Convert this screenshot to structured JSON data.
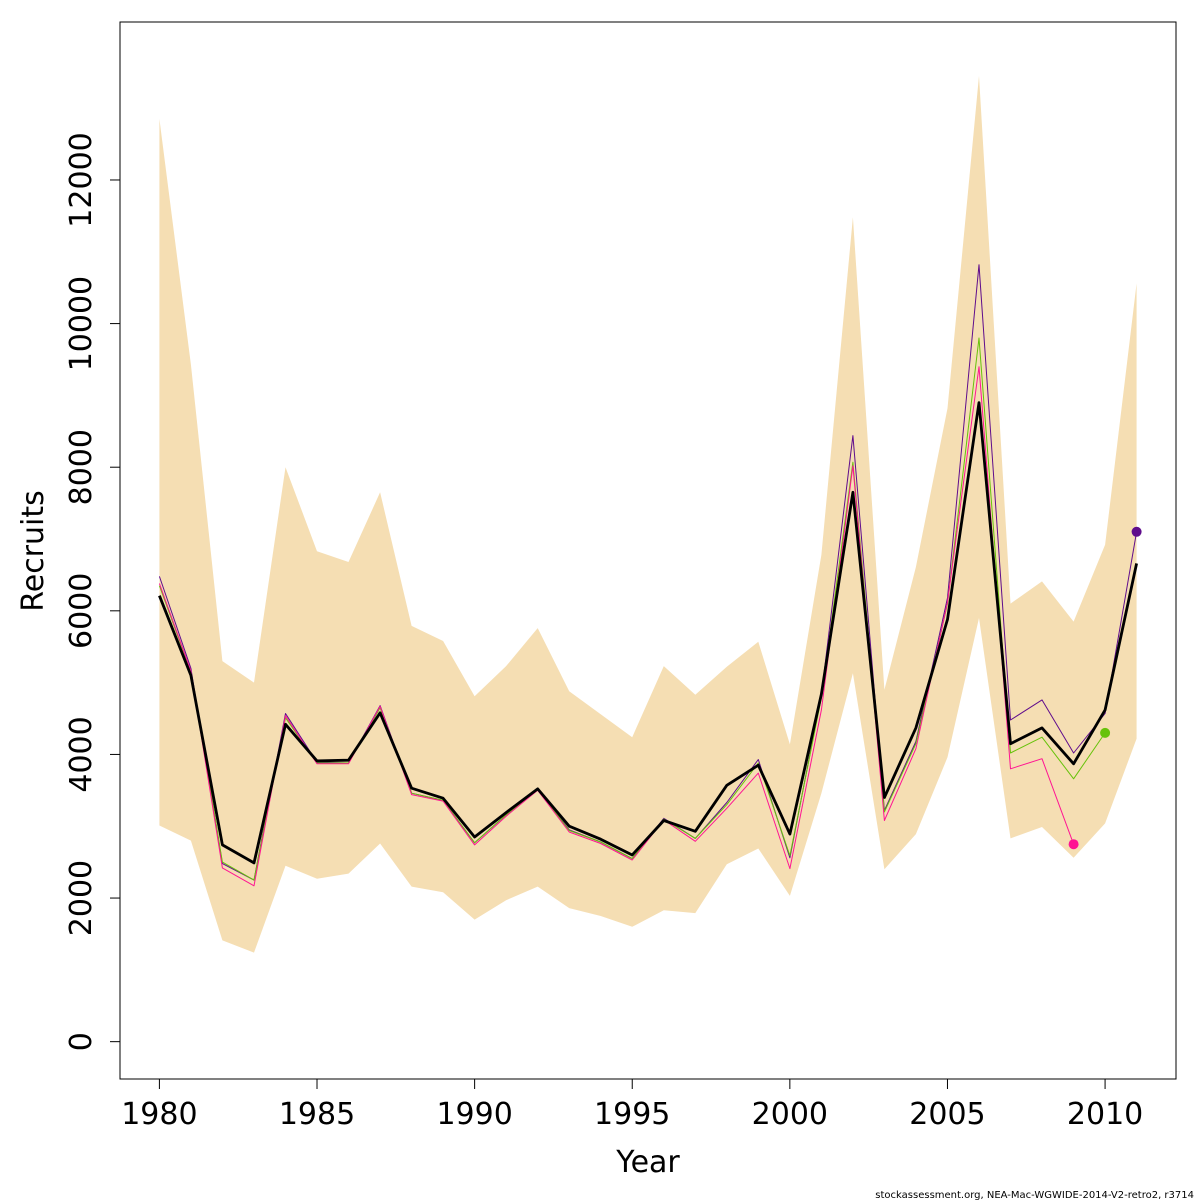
{
  "chart_data": {
    "type": "line",
    "xlabel": "Year",
    "ylabel": "Recruits",
    "xlim": [
      1978.75,
      2012.25
    ],
    "ylim": [
      -520,
      14200
    ],
    "x_ticks": [
      1980,
      1985,
      1990,
      1995,
      2000,
      2005,
      2010
    ],
    "y_ticks": [
      0,
      2000,
      4000,
      6000,
      8000,
      10000,
      12000
    ],
    "grid": false,
    "years": [
      1980,
      1981,
      1982,
      1983,
      1984,
      1985,
      1986,
      1987,
      1988,
      1989,
      1990,
      1991,
      1992,
      1993,
      1994,
      1995,
      1996,
      1997,
      1998,
      1999,
      2000,
      2001,
      2002,
      2003,
      2004,
      2005,
      2006,
      2007,
      2008,
      2009,
      2010,
      2011
    ],
    "confidence_band": {
      "color": "#f5deb3",
      "lower": [
        3010,
        2800,
        1410,
        1240,
        2450,
        2270,
        2340,
        2760,
        2160,
        2080,
        1700,
        1970,
        2160,
        1860,
        1750,
        1600,
        1830,
        1790,
        2470,
        2690,
        2030,
        3460,
        5130,
        2400,
        2890,
        3960,
        5900,
        2830,
        2990,
        2560,
        3040,
        4220
      ],
      "upper": [
        12850,
        9430,
        5300,
        5000,
        8000,
        6830,
        6680,
        7650,
        5790,
        5580,
        4810,
        5230,
        5760,
        4880,
        4560,
        4240,
        5230,
        4830,
        5220,
        5570,
        4140,
        6780,
        11480,
        4900,
        6610,
        8820,
        13450,
        6100,
        6410,
        5850,
        6920,
        10560
      ]
    },
    "series": [
      {
        "color": "#000000",
        "stroke_width": 2.8,
        "values": [
          6210,
          5100,
          2740,
          2490,
          4420,
          3910,
          3920,
          4580,
          3530,
          3390,
          2850,
          3190,
          3520,
          3000,
          2820,
          2600,
          3080,
          2930,
          3570,
          3850,
          2890,
          4840,
          7650,
          3400,
          4370,
          5880,
          8900,
          4150,
          4370,
          3870,
          4620,
          6660
        ]
      },
      {
        "color": "#5f0c8c",
        "stroke_width": 1,
        "values": [
          6480,
          5200,
          2480,
          2250,
          4570,
          3890,
          3880,
          4680,
          3460,
          3360,
          2770,
          3160,
          3510,
          2950,
          2780,
          2550,
          3110,
          2830,
          3330,
          3930,
          2560,
          4830,
          8440,
          3220,
          4180,
          6180,
          10820,
          4480,
          4760,
          4020,
          4570,
          7100
        ],
        "end_marker": true
      },
      {
        "color": "#66c20a",
        "stroke_width": 1,
        "values": [
          6350,
          5150,
          2500,
          2250,
          4510,
          3880,
          3880,
          4650,
          3460,
          3360,
          2770,
          3160,
          3510,
          2940,
          2780,
          2550,
          3100,
          2830,
          3300,
          3880,
          2590,
          4790,
          8070,
          3200,
          4150,
          6100,
          9800,
          4020,
          4240,
          3660,
          4300
        ],
        "end_marker": true
      },
      {
        "color": "#ff1493",
        "stroke_width": 1,
        "values": [
          6380,
          5160,
          2420,
          2170,
          4540,
          3870,
          3870,
          4670,
          3440,
          3350,
          2740,
          3140,
          3500,
          2920,
          2760,
          2530,
          3090,
          2790,
          3250,
          3740,
          2410,
          4620,
          8020,
          3080,
          4080,
          6120,
          9400,
          3800,
          3940,
          2750
        ],
        "end_marker": true
      }
    ]
  },
  "footer": "stockassessment.org, NEA-Mac-WGWIDE-2014-V2-retro2, r3714"
}
